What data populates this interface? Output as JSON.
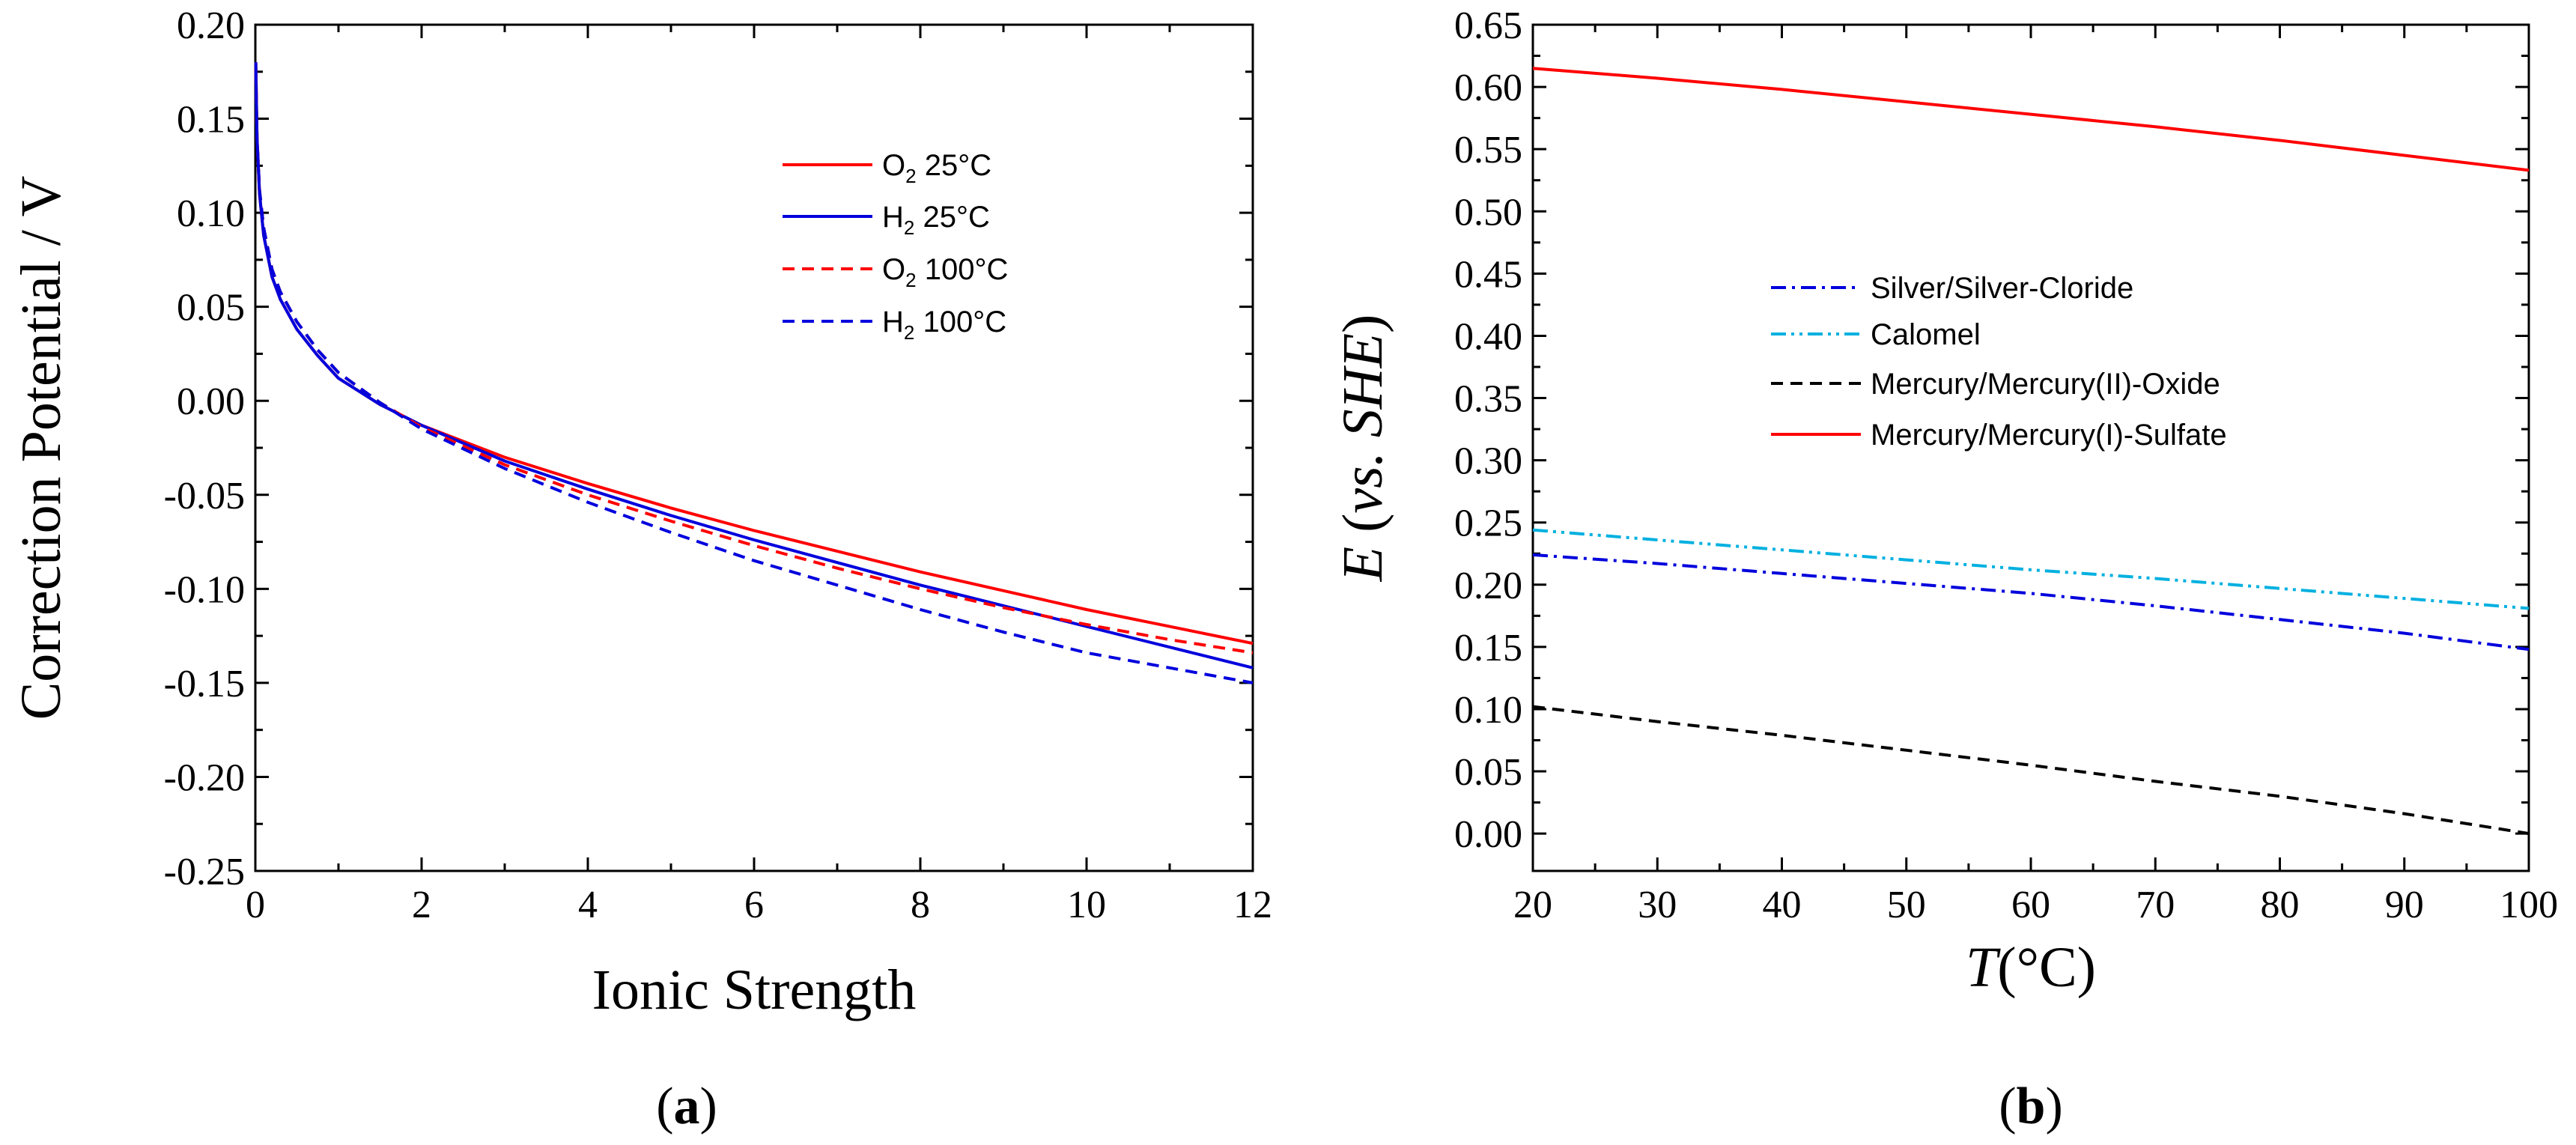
{
  "chart_data": [
    {
      "id": "a",
      "type": "line",
      "panel_label": {
        "open": "(",
        "letter": "a",
        "close": ")"
      },
      "xlabel": "Ionic Strength",
      "ylabel": "Correction Potential / V",
      "xlim": [
        0,
        12
      ],
      "ylim": [
        -0.25,
        0.2
      ],
      "xticks": [
        0,
        2,
        4,
        6,
        8,
        10,
        12
      ],
      "xtick_labels": [
        "0",
        "2",
        "4",
        "6",
        "8",
        "10",
        "12"
      ],
      "yticks": [
        -0.25,
        -0.2,
        -0.15,
        -0.1,
        -0.05,
        0.0,
        0.05,
        0.1,
        0.15,
        0.2
      ],
      "ytick_labels": [
        "-0.25",
        "-0.20",
        "-0.15",
        "-0.10",
        "-0.05",
        "0.00",
        "0.05",
        "0.10",
        "0.15",
        "0.20"
      ],
      "legend_position": "upper-right",
      "series": [
        {
          "name": "O2 25°C",
          "label_main": "O",
          "label_sub": "2",
          "label_rest": " 25°C",
          "color": "#ff0000",
          "style": "solid",
          "x": [
            0.005,
            0.02,
            0.05,
            0.1,
            0.2,
            0.3,
            0.5,
            0.75,
            1,
            1.5,
            2,
            3,
            4,
            5,
            6,
            7,
            8,
            9,
            10,
            11,
            12
          ],
          "y": [
            0.18,
            0.14,
            0.11,
            0.088,
            0.066,
            0.054,
            0.038,
            0.024,
            0.012,
            -0.002,
            -0.013,
            -0.03,
            -0.044,
            -0.057,
            -0.069,
            -0.08,
            -0.091,
            -0.101,
            -0.111,
            -0.12,
            -0.129
          ]
        },
        {
          "name": "H2 25°C",
          "label_main": "H",
          "label_sub": "2",
          "label_rest": " 25°C",
          "color": "#0000dd",
          "style": "solid",
          "x": [
            0.005,
            0.02,
            0.05,
            0.1,
            0.2,
            0.3,
            0.5,
            0.75,
            1,
            1.5,
            2,
            3,
            4,
            5,
            6,
            7,
            8,
            9,
            10,
            11,
            12
          ],
          "y": [
            0.18,
            0.14,
            0.11,
            0.088,
            0.066,
            0.054,
            0.038,
            0.024,
            0.012,
            -0.002,
            -0.013,
            -0.032,
            -0.047,
            -0.061,
            -0.074,
            -0.086,
            -0.098,
            -0.109,
            -0.12,
            -0.131,
            -0.142
          ]
        },
        {
          "name": "O2 100°C",
          "label_main": "O",
          "label_sub": "2",
          "label_rest": " 100°C",
          "color": "#ff0000",
          "style": "dashed",
          "x": [
            0.005,
            0.02,
            0.05,
            0.1,
            0.2,
            0.3,
            0.5,
            0.75,
            1,
            1.5,
            2,
            3,
            4,
            5,
            6,
            7,
            8,
            9,
            10,
            11,
            12
          ],
          "y": [
            0.175,
            0.14,
            0.112,
            0.092,
            0.07,
            0.058,
            0.042,
            0.027,
            0.015,
            -0.001,
            -0.014,
            -0.034,
            -0.05,
            -0.064,
            -0.077,
            -0.089,
            -0.1,
            -0.11,
            -0.119,
            -0.127,
            -0.134
          ]
        },
        {
          "name": "H2 100°C",
          "label_main": "H",
          "label_sub": "2",
          "label_rest": " 100°C",
          "color": "#0000dd",
          "style": "dashed",
          "x": [
            0.005,
            0.02,
            0.05,
            0.1,
            0.2,
            0.3,
            0.5,
            0.75,
            1,
            1.5,
            2,
            3,
            4,
            5,
            6,
            7,
            8,
            9,
            10,
            11,
            12
          ],
          "y": [
            0.175,
            0.14,
            0.112,
            0.092,
            0.07,
            0.058,
            0.042,
            0.027,
            0.015,
            -0.001,
            -0.015,
            -0.036,
            -0.054,
            -0.07,
            -0.085,
            -0.098,
            -0.111,
            -0.123,
            -0.134,
            -0.142,
            -0.15
          ]
        }
      ]
    },
    {
      "id": "b",
      "type": "line",
      "panel_label": {
        "open": "(",
        "letter": "b",
        "close": ")"
      },
      "xlabel_italic": "T",
      "xlabel_rest": "(°C)",
      "ylabel_italic_e": "E",
      "ylabel_open": " (",
      "ylabel_vs": "vs.",
      "ylabel_space": " ",
      "ylabel_she": "SHE",
      "ylabel_close": ")",
      "xlim": [
        20,
        100
      ],
      "ylim": [
        -0.03,
        0.65
      ],
      "xticks": [
        20,
        30,
        40,
        50,
        60,
        70,
        80,
        90,
        100
      ],
      "xtick_labels": [
        "20",
        "30",
        "40",
        "50",
        "60",
        "70",
        "80",
        "90",
        "100"
      ],
      "yticks": [
        0.0,
        0.05,
        0.1,
        0.15,
        0.2,
        0.25,
        0.3,
        0.35,
        0.4,
        0.45,
        0.5,
        0.55,
        0.6,
        0.65
      ],
      "ytick_labels": [
        "0.00",
        "0.05",
        "0.10",
        "0.15",
        "0.20",
        "0.25",
        "0.30",
        "0.35",
        "0.40",
        "0.45",
        "0.50",
        "0.55",
        "0.60",
        "0.65"
      ],
      "legend_position": "middle-left",
      "series": [
        {
          "name": "Silver/Silver-Cloride",
          "color": "#0000dd",
          "style": "dashdot",
          "x": [
            20,
            30,
            40,
            50,
            60,
            70,
            80,
            90,
            100
          ],
          "y": [
            0.224,
            0.217,
            0.209,
            0.201,
            0.193,
            0.183,
            0.172,
            0.161,
            0.148
          ]
        },
        {
          "name": "Calomel",
          "color": "#00b0e0",
          "style": "dashdotdot",
          "x": [
            20,
            30,
            40,
            50,
            60,
            70,
            80,
            90,
            100
          ],
          "y": [
            0.244,
            0.236,
            0.228,
            0.22,
            0.212,
            0.205,
            0.197,
            0.189,
            0.181
          ]
        },
        {
          "name": "Mercury/Mercury(II)-Oxide",
          "color": "#000000",
          "style": "dashed",
          "x": [
            20,
            30,
            40,
            50,
            60,
            70,
            80,
            90,
            100
          ],
          "y": [
            0.102,
            0.09,
            0.079,
            0.067,
            0.055,
            0.042,
            0.03,
            0.016,
            0.0
          ]
        },
        {
          "name": "Mercury/Mercury(I)-Sulfate",
          "color": "#ff0000",
          "style": "solid",
          "x": [
            20,
            30,
            40,
            50,
            60,
            70,
            80,
            90,
            100
          ],
          "y": [
            0.615,
            0.607,
            0.598,
            0.588,
            0.578,
            0.568,
            0.557,
            0.545,
            0.533
          ]
        }
      ]
    }
  ]
}
